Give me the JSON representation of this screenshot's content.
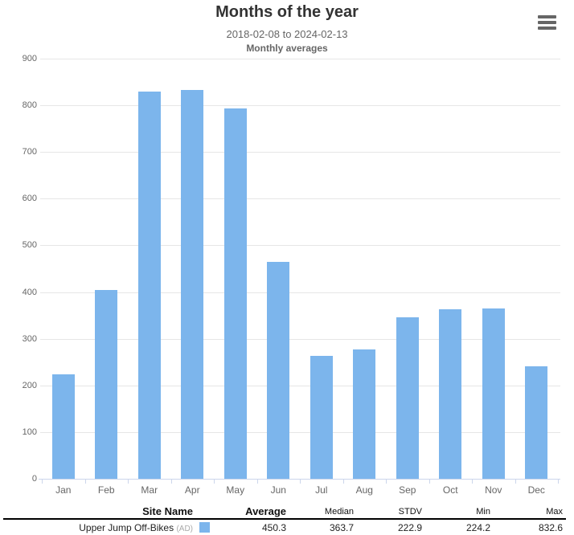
{
  "header": {
    "title": "Months of the year",
    "date_range": "2018-02-08 to 2024-02-13",
    "subtitle": "Monthly averages"
  },
  "icons": {
    "export_menu": "hamburger-menu"
  },
  "colors": {
    "bar": "#7cb5ec",
    "title": "#333333",
    "subtitle": "#666666",
    "axis_label": "#666666",
    "grid": "#e6e6e6",
    "axis_line": "#ccd6eb",
    "header_rule": "#000000",
    "row_rule": "#bfbfbf"
  },
  "chart_data": {
    "type": "bar",
    "title": "Months of the year",
    "subtitle": "2018-02-08 to 2024-02-13",
    "subtitle2": "Monthly averages",
    "categories": [
      "Jan",
      "Feb",
      "Mar",
      "Apr",
      "May",
      "Jun",
      "Jul",
      "Aug",
      "Sep",
      "Oct",
      "Nov",
      "Dec"
    ],
    "series": [
      {
        "name": "Upper Jump Off-Bikes (AD)",
        "color": "#7cb5ec",
        "values": [
          224.2,
          404,
          829,
          832.6,
          794,
          465,
          263,
          277,
          346,
          362.5,
          364.9,
          241
        ]
      }
    ],
    "ylim": [
      0,
      900
    ],
    "ytick_step": 100,
    "yticks": [
      0,
      100,
      200,
      300,
      400,
      500,
      600,
      700,
      800,
      900
    ],
    "grid": true,
    "legend_position": "table below chart"
  },
  "table": {
    "headers": {
      "site": "Site Name",
      "average": "Average",
      "median": "Median",
      "stdv": "STDV",
      "min": "Min",
      "max": "Max"
    },
    "rows": [
      {
        "site": "Upper Jump Off-Bikes",
        "site_suffix": "(AD)",
        "swatch_color": "#7cb5ec",
        "average": "450.3",
        "median": "363.7",
        "stdv": "222.9",
        "min": "224.2",
        "max": "832.6"
      }
    ]
  }
}
